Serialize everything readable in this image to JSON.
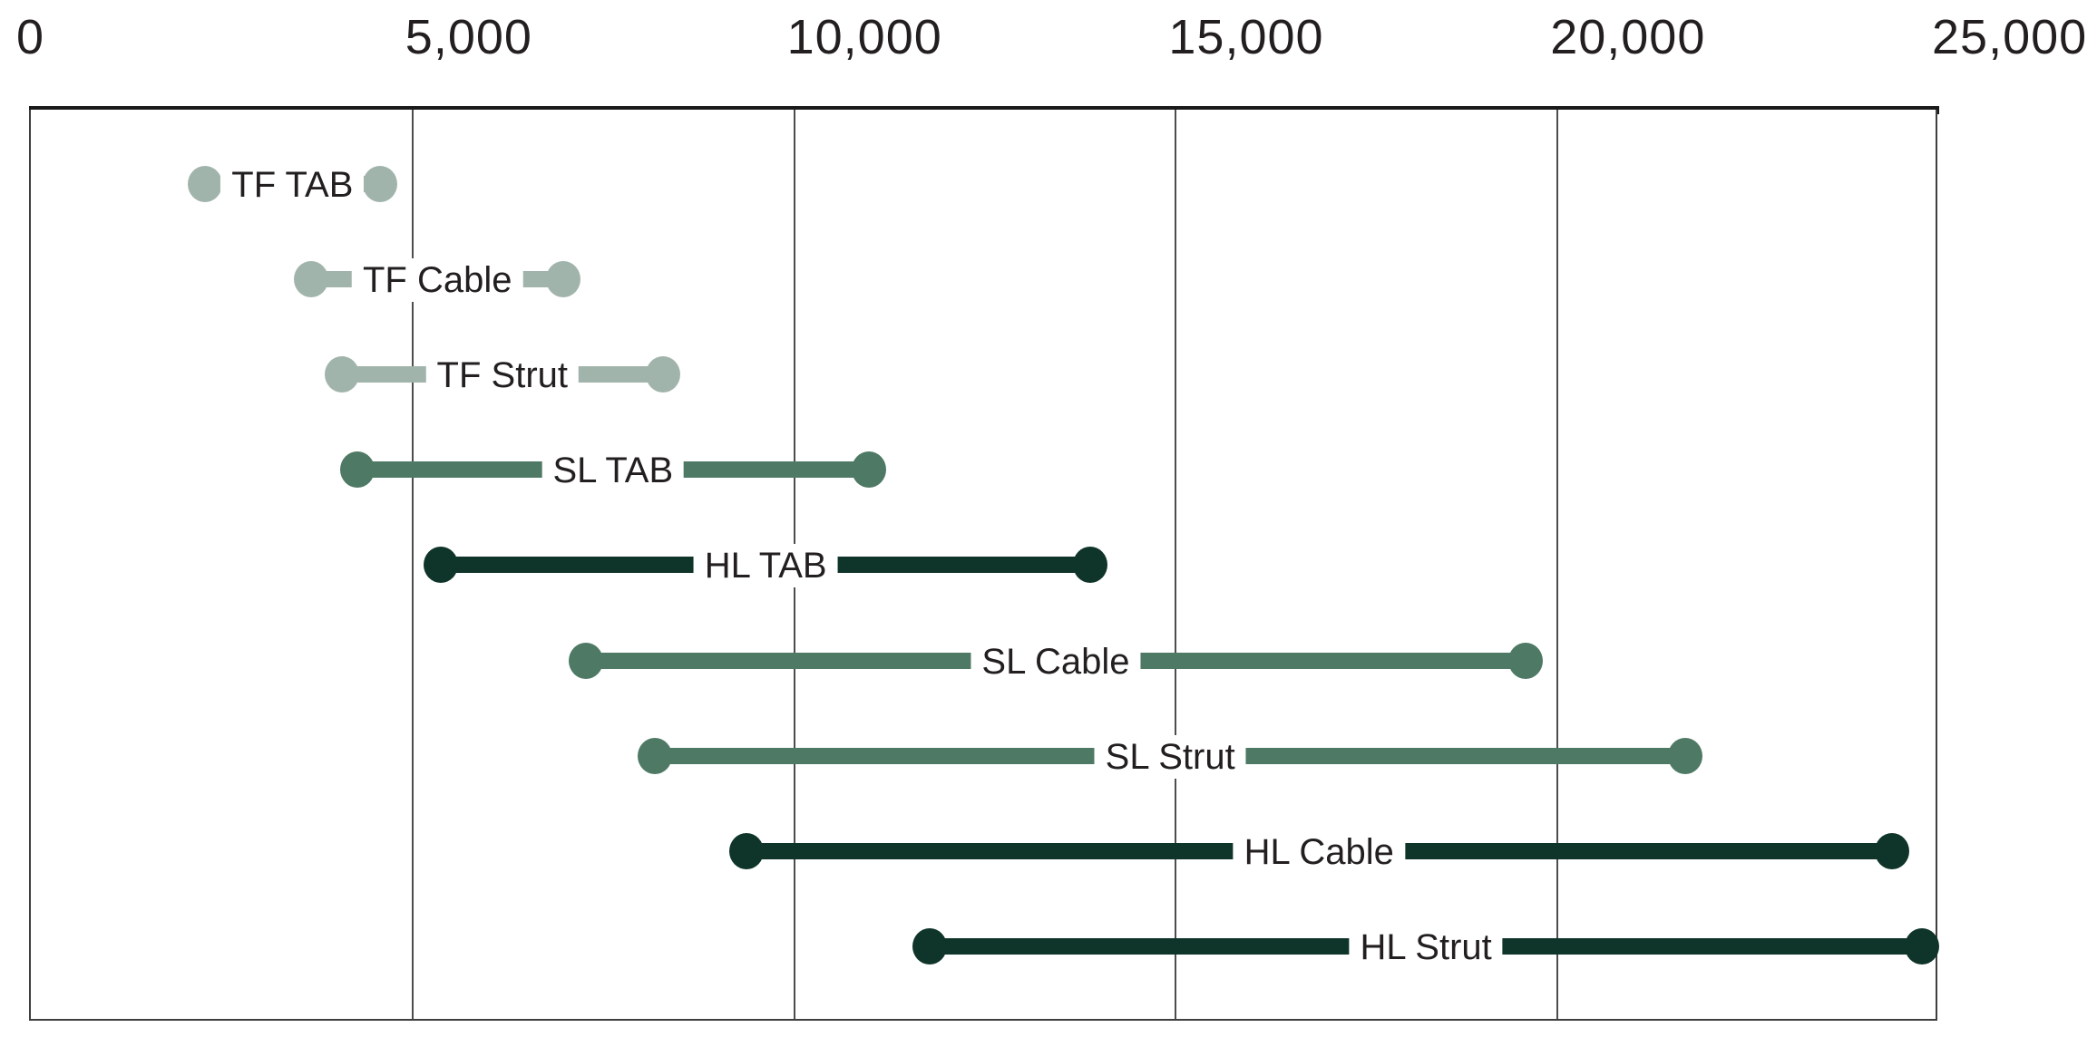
{
  "chart_data": {
    "type": "dumbbell",
    "title": "",
    "x_axis": {
      "min": 0,
      "max": 25000,
      "tick_interval": 5000,
      "ticks": [
        {
          "value": 0,
          "label": "0"
        },
        {
          "value": 5000,
          "label": "5,000"
        },
        {
          "value": 10000,
          "label": "10,000"
        },
        {
          "value": 15000,
          "label": "15,000"
        },
        {
          "value": 20000,
          "label": "20,000"
        },
        {
          "value": 25000,
          "label": "25,000"
        }
      ],
      "position": "top",
      "gridlines_at": [
        5000,
        10000,
        15000,
        20000
      ]
    },
    "series": [
      {
        "label": "TF TAB",
        "group": "TF",
        "low": 2300,
        "high": 4600
      },
      {
        "label": "TF Cable",
        "group": "TF",
        "low": 3700,
        "high": 7000
      },
      {
        "label": "TF Strut",
        "group": "TF",
        "low": 4100,
        "high": 8300
      },
      {
        "label": "SL TAB",
        "group": "SL",
        "low": 4300,
        "high": 11000
      },
      {
        "label": "HL TAB",
        "group": "HL",
        "low": 5400,
        "high": 13900
      },
      {
        "label": "SL Cable",
        "group": "SL",
        "low": 7300,
        "high": 19600
      },
      {
        "label": "SL Strut",
        "group": "SL",
        "low": 8200,
        "high": 21700
      },
      {
        "label": "HL Cable",
        "group": "HL",
        "low": 9400,
        "high": 24400
      },
      {
        "label": "HL Strut",
        "group": "HL",
        "low": 11800,
        "high": 24800
      }
    ],
    "group_colors": {
      "TF": "#a1b4ab",
      "SL": "#4e7965",
      "HL": "#0f3429"
    },
    "style": {
      "grid": true,
      "legend": "none",
      "label_placement": "inline-middle",
      "text_color": "#231f20",
      "axis_line_color": "#1a1a1a",
      "frame_color": "#3f3f3f",
      "background": "#ffffff"
    }
  }
}
